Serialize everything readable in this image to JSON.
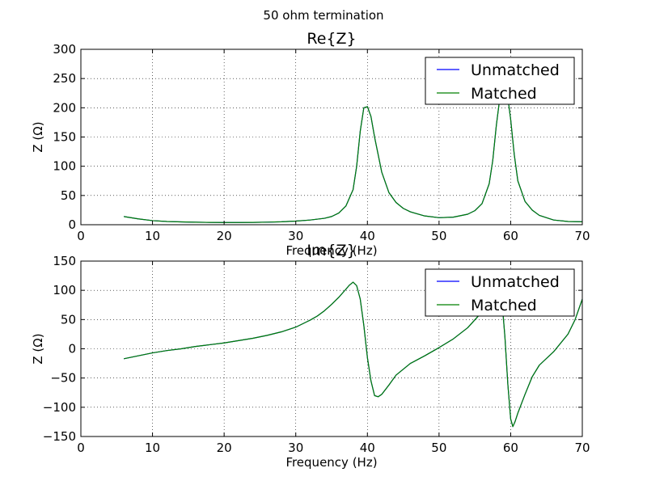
{
  "figure": {
    "suptitle": "50 ohm termination"
  },
  "chart_data": [
    {
      "type": "line",
      "title": "Re{Z}",
      "xlabel": "Frequency (Hz)",
      "ylabel": "Z (Ω)",
      "xlim": [
        0,
        70
      ],
      "ylim": [
        0,
        300
      ],
      "xticks": [
        0,
        10,
        20,
        30,
        40,
        50,
        60,
        70
      ],
      "yticks": [
        0,
        50,
        100,
        150,
        200,
        250,
        300
      ],
      "xtick_labels": [
        "0",
        "10",
        "20",
        "30",
        "40",
        "50",
        "60",
        "70"
      ],
      "ytick_labels": [
        "0",
        "50",
        "100",
        "150",
        "200",
        "250",
        "300"
      ],
      "grid": true,
      "legend": {
        "placement": "top-right",
        "entries": [
          "Unmatched",
          "Matched"
        ]
      },
      "x": [
        6,
        8,
        10,
        12,
        14,
        16,
        18,
        20,
        22,
        24,
        26,
        28,
        30,
        32,
        34,
        35,
        36,
        37,
        38,
        38.5,
        39,
        39.5,
        40,
        40.5,
        41,
        42,
        43,
        44,
        45,
        46,
        48,
        50,
        52,
        54,
        55,
        56,
        57,
        57.5,
        58,
        58.5,
        58.8,
        59.2,
        59.6,
        60,
        60.5,
        61,
        62,
        63,
        64,
        66,
        68,
        70
      ],
      "series": [
        {
          "name": "Unmatched",
          "color": "#0000ff",
          "values": [
            14,
            10,
            7,
            5.5,
            4.8,
            4.3,
            4,
            3.8,
            3.8,
            4,
            4.4,
            5,
            6.2,
            8,
            11,
            14,
            20,
            32,
            60,
            100,
            160,
            200,
            202,
            185,
            150,
            90,
            55,
            38,
            28,
            22,
            15,
            12,
            13,
            18,
            24,
            36,
            70,
            110,
            170,
            218,
            232,
            232,
            218,
            180,
            120,
            75,
            40,
            25,
            16,
            8,
            5.5,
            5
          ]
        },
        {
          "name": "Matched",
          "color": "#008000",
          "values": [
            14,
            10,
            7,
            5.5,
            4.8,
            4.3,
            4,
            3.8,
            3.8,
            4,
            4.4,
            5,
            6.2,
            8,
            11,
            14,
            20,
            32,
            60,
            100,
            160,
            200,
            202,
            185,
            150,
            90,
            55,
            38,
            28,
            22,
            15,
            12,
            13,
            18,
            24,
            36,
            70,
            110,
            170,
            218,
            232,
            232,
            218,
            180,
            120,
            75,
            40,
            25,
            16,
            8,
            5.5,
            5
          ]
        }
      ]
    },
    {
      "type": "line",
      "title": "Im{Z}",
      "xlabel": "Frequency (Hz)",
      "ylabel": "Z (Ω)",
      "xlim": [
        0,
        70
      ],
      "ylim": [
        -150,
        150
      ],
      "xticks": [
        0,
        10,
        20,
        30,
        40,
        50,
        60,
        70
      ],
      "yticks": [
        -150,
        -100,
        -50,
        0,
        50,
        100,
        150
      ],
      "xtick_labels": [
        "0",
        "10",
        "20",
        "30",
        "40",
        "50",
        "60",
        "70"
      ],
      "ytick_labels": [
        "−150",
        "−100",
        "−50",
        "0",
        "50",
        "100",
        "150"
      ],
      "grid": true,
      "legend": {
        "placement": "top-right",
        "entries": [
          "Unmatched",
          "Matched"
        ]
      },
      "x": [
        6,
        8,
        10,
        12,
        14,
        16,
        18,
        20,
        22,
        24,
        26,
        28,
        30,
        32,
        33,
        34,
        35,
        36,
        37,
        37.5,
        38,
        38.5,
        39,
        39.5,
        40,
        40.5,
        41,
        41.5,
        42,
        43,
        44,
        46,
        48,
        50,
        52,
        54,
        56,
        57,
        57.8,
        58.3,
        58.8,
        59.2,
        59.6,
        60,
        60.3,
        60.6,
        61,
        62,
        63,
        64,
        66,
        68,
        69,
        70
      ],
      "series": [
        {
          "name": "Unmatched",
          "color": "#0000ff",
          "values": [
            -17,
            -12,
            -7,
            -3,
            0,
            4,
            7,
            10,
            14,
            18,
            23,
            29,
            37,
            49,
            56,
            65,
            76,
            88,
            102,
            109,
            114,
            108,
            85,
            40,
            -15,
            -55,
            -80,
            -82,
            -78,
            -62,
            -45,
            -25,
            -12,
            2,
            17,
            36,
            63,
            88,
            100,
            105,
            80,
            20,
            -60,
            -120,
            -133,
            -125,
            -110,
            -78,
            -48,
            -28,
            -5,
            25,
            50,
            85
          ]
        },
        {
          "name": "Matched",
          "color": "#008000",
          "values": [
            -17,
            -12,
            -7,
            -3,
            0,
            4,
            7,
            10,
            14,
            18,
            23,
            29,
            37,
            49,
            56,
            65,
            76,
            88,
            102,
            109,
            114,
            108,
            85,
            40,
            -15,
            -55,
            -80,
            -82,
            -78,
            -62,
            -45,
            -25,
            -12,
            2,
            17,
            36,
            63,
            88,
            100,
            105,
            80,
            20,
            -60,
            -120,
            -133,
            -125,
            -110,
            -78,
            -48,
            -28,
            -5,
            25,
            50,
            85
          ]
        }
      ]
    }
  ]
}
